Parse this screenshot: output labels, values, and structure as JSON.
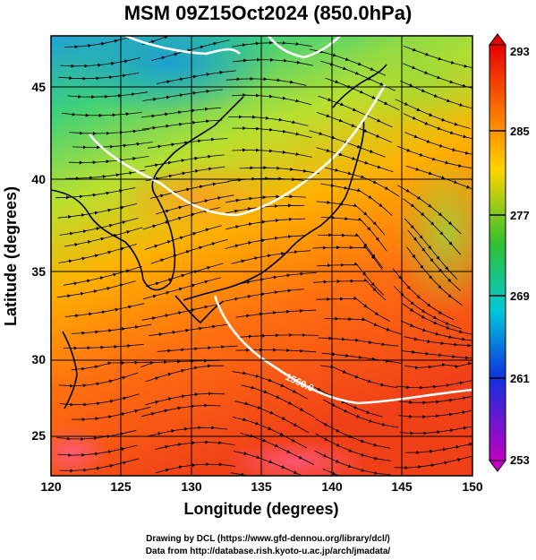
{
  "title": "MSM 09Z15Oct2024 (850.0hPa)",
  "map": {
    "xlabel": "Longitude (degrees)",
    "ylabel": "Latitude  (degrees)",
    "lon_range": [
      120,
      150
    ],
    "lat_range": [
      22.5,
      48
    ],
    "lon_ticks": [
      "120",
      "125",
      "130",
      "135",
      "140",
      "145",
      "150"
    ],
    "lat_ticks": [
      "25",
      "30",
      "35",
      "40",
      "45"
    ],
    "grid": true,
    "contour_label": "1560.0"
  },
  "colorbar": {
    "labels": [
      "293",
      "285",
      "277",
      "269",
      "261",
      "253"
    ],
    "colors": [
      "#e60000",
      "#ff7f00",
      "#ffd400",
      "#30c030",
      "#00c8d8",
      "#1030e0",
      "#c000c0"
    ]
  },
  "credits": {
    "line1": "Drawing by DCL (https://www.gfd-dennou.org/library/dcl/)",
    "line2": "Data from http://database.rish.kyoto-u.ac.jp/arch/jmadata/"
  }
}
